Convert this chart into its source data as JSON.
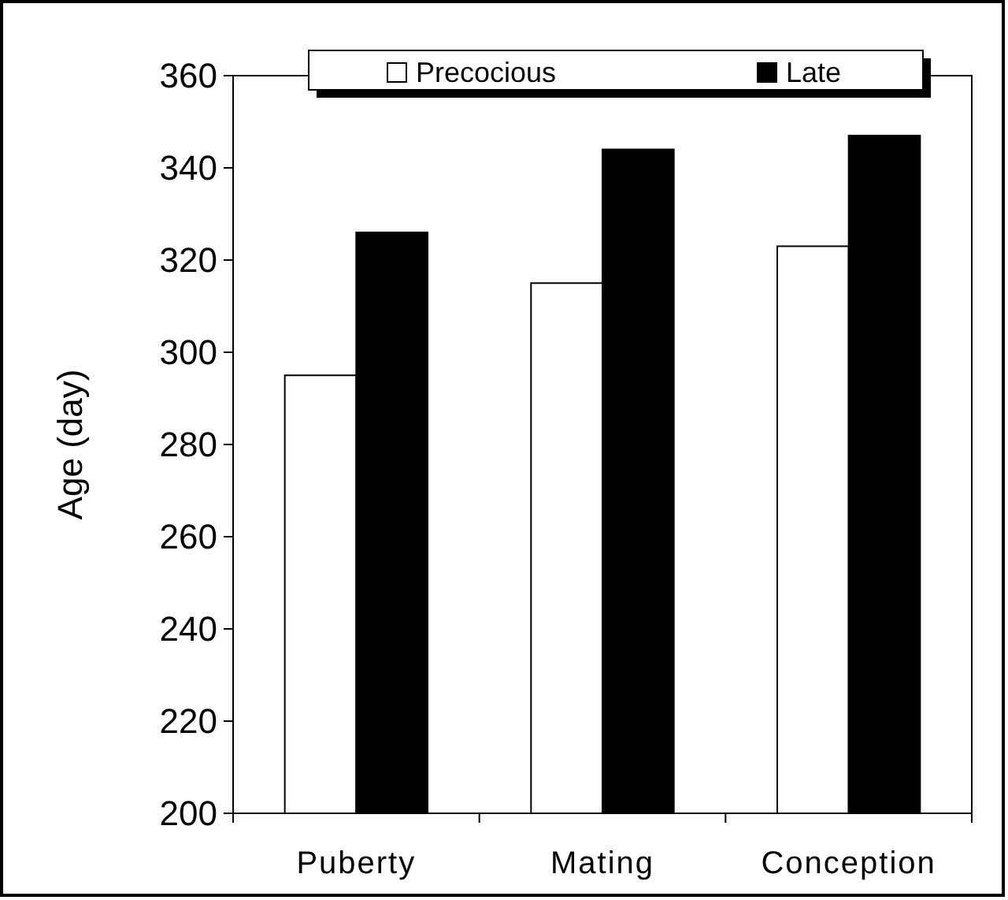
{
  "chart_data": {
    "type": "bar",
    "ylabel": "Age (day)",
    "categories": [
      "Puberty",
      "Mating",
      "Conception"
    ],
    "series": [
      {
        "name": "Precocious",
        "color": "#ffffff",
        "values": [
          295,
          315,
          323
        ]
      },
      {
        "name": "Late",
        "color": "#000000",
        "values": [
          326,
          344,
          347
        ]
      }
    ],
    "ylim": [
      200,
      360
    ],
    "yticks": [
      200,
      220,
      240,
      260,
      280,
      300,
      320,
      340,
      360
    ],
    "grid": false,
    "legend": "top"
  }
}
